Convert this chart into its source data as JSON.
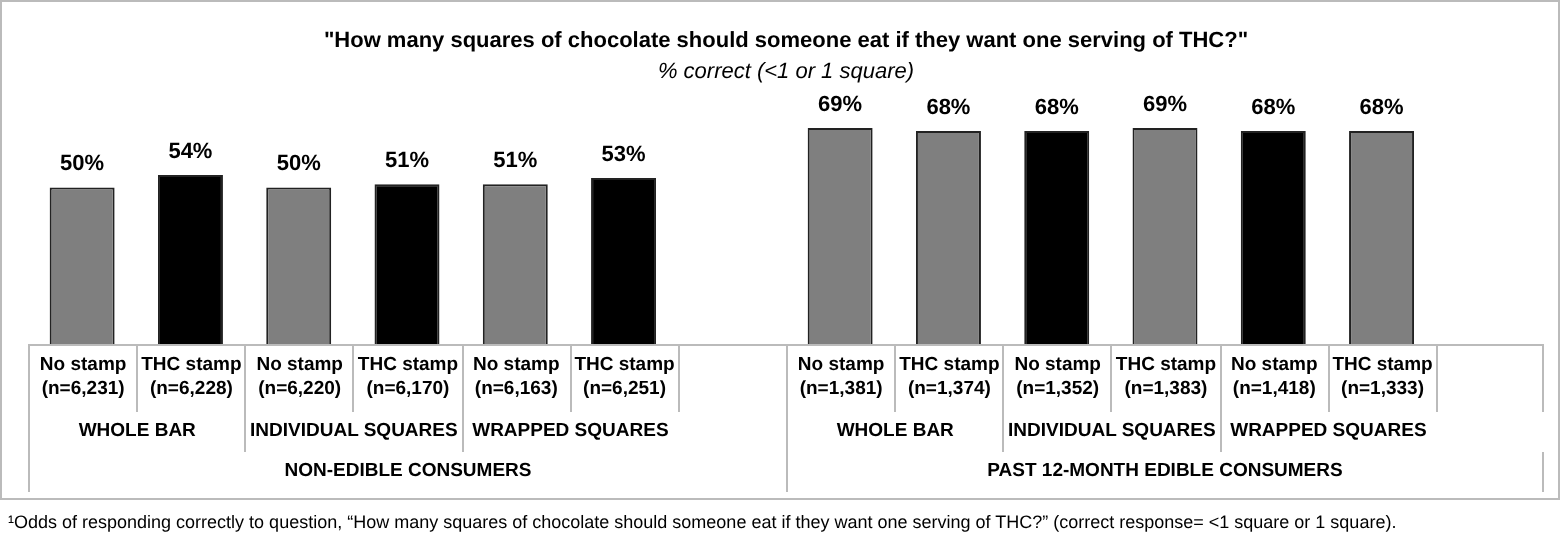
{
  "chart_data": {
    "type": "bar",
    "title": "\"How many squares of chocolate should someone eat if they want one serving of THC?\"",
    "subtitle": "% correct (<1 or 1 square)",
    "categories": [
      "No stamp (n=6,231)",
      "THC stamp (n=6,228)",
      "No stamp (n=6,220)",
      "THC stamp (n=6,170)",
      "No stamp (n=6,163)",
      "THC stamp (n=6,251)",
      null,
      "No stamp (n=1,381)",
      "THC stamp (n=1,374)",
      "No stamp (n=1,352)",
      "THC stamp (n=1,383)",
      "No stamp (n=1,418)",
      "THC stamp (n=1,333)",
      null
    ],
    "values": [
      50,
      54,
      50,
      51,
      51,
      53,
      null,
      69,
      68,
      68,
      69,
      68,
      68,
      null
    ],
    "value_labels": [
      "50%",
      "54%",
      "50%",
      "51%",
      "51%",
      "53%",
      null,
      "69%",
      "68%",
      "68%",
      "69%",
      "68%",
      "68%",
      null
    ],
    "colors": [
      "#7f7f7f",
      "#000000",
      "#7f7f7f",
      "#000000",
      "#7f7f7f",
      "#000000",
      "#7f7f7f",
      "#7f7f7f",
      "#7f7f7f",
      "#000000",
      "#7f7f7f",
      "#000000",
      "#7f7f7f",
      "#7f7f7f"
    ],
    "tick_labels": "x",
    "grid": false,
    "legend": false,
    "annotations": [
      "WHOLE BAR",
      "INDIVIDUAL SQUARES",
      "WRAPPED SQUARES",
      "WHOLE BAR",
      "INDIVIDUAL SQUARES",
      "WRAPPED SQUARES",
      "NON-EDIBLE CONSUMERS",
      "PAST 12-MONTH EDIBLE CONSUMERS",
      "¹Odds of responding correctly to question, “How many squares of chocolate should someone eat if they want one serving of THC?” (correct response= <1 square or 1 square)."
    ]
  }
}
